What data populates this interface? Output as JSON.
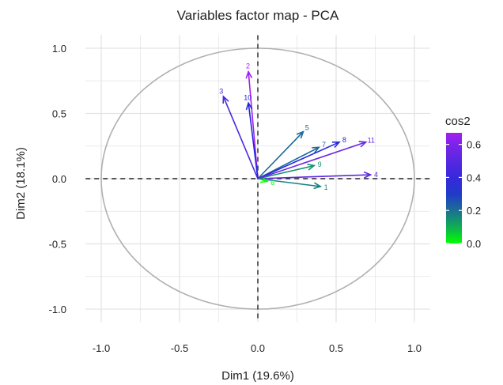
{
  "chart_data": {
    "type": "scatter",
    "title": "Variables factor map - PCA",
    "xlabel": "Dim1 (19.6%)",
    "ylabel": "Dim2 (18.1%)",
    "xlim": [
      -1.1,
      1.1
    ],
    "ylim": [
      -1.1,
      1.1
    ],
    "x_ticks": [
      -1.0,
      -0.5,
      0.0,
      0.5,
      1.0
    ],
    "y_ticks": [
      -1.0,
      -0.5,
      0.0,
      0.5,
      1.0
    ],
    "x_tick_labels": [
      "-1.0",
      "-0.5",
      "0.0",
      "0.5",
      "1.0"
    ],
    "y_tick_labels": [
      "-1.0",
      "-0.5",
      "0.0",
      "0.5",
      "1.0"
    ],
    "grid": true,
    "unit_circle": true,
    "reference_lines": "dashed lines at x=0 and y=0",
    "vectors": [
      {
        "label": "1",
        "x": 0.4,
        "y": -0.06,
        "cos2": 0.17
      },
      {
        "label": "2",
        "x": -0.06,
        "y": 0.82,
        "cos2": 0.67
      },
      {
        "label": "3",
        "x": -0.22,
        "y": 0.63,
        "cos2": 0.45
      },
      {
        "label": "4",
        "x": 0.72,
        "y": 0.03,
        "cos2": 0.52
      },
      {
        "label": "5",
        "x": 0.29,
        "y": 0.36,
        "cos2": 0.21
      },
      {
        "label": "6",
        "x": 0.06,
        "y": -0.02,
        "cos2": 0.0
      },
      {
        "label": "7",
        "x": 0.39,
        "y": 0.24,
        "cos2": 0.21
      },
      {
        "label": "8",
        "x": 0.52,
        "y": 0.28,
        "cos2": 0.35
      },
      {
        "label": "9",
        "x": 0.36,
        "y": 0.1,
        "cos2": 0.14
      },
      {
        "label": "10",
        "x": -0.06,
        "y": 0.58,
        "cos2": 0.34
      },
      {
        "label": "11",
        "x": 0.69,
        "y": 0.28,
        "cos2": 0.55
      }
    ],
    "legend": {
      "title": "cos2",
      "placement": "right",
      "ticks": [
        0.0,
        0.2,
        0.4,
        0.6
      ],
      "tick_labels": [
        "0.0",
        "0.2",
        "0.4",
        "0.6"
      ],
      "range": [
        0.0,
        0.67
      ],
      "colors": [
        "#00ff00",
        "#0000ff",
        "#a020f0"
      ]
    }
  }
}
